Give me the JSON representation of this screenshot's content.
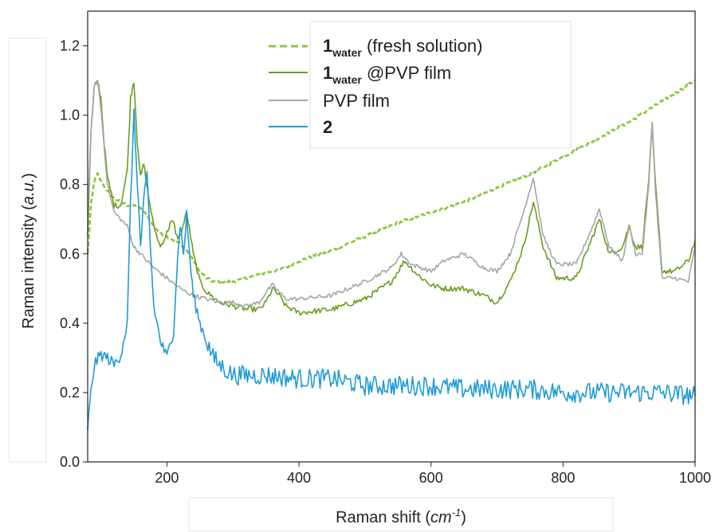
{
  "chart_data": {
    "type": "line",
    "title": "",
    "xlabel": "Raman shift (cm⁻¹)",
    "xlabel_prefix": "Raman shift (",
    "xlabel_unit": "cm",
    "xlabel_exp": "-1",
    "xlabel_suffix": ")",
    "ylabel": "Raman intensity (a.u.)",
    "ylabel_prefix": "Raman intensity (",
    "ylabel_unit": "a.u.",
    "ylabel_suffix": ")",
    "xlim": [
      80,
      1000
    ],
    "ylim": [
      0,
      1.3
    ],
    "xticks": [
      200,
      400,
      600,
      800,
      1000
    ],
    "yticks": [
      0.0,
      0.2,
      0.4,
      0.6,
      0.8,
      1.0,
      1.2
    ],
    "grid": false,
    "legend_position": "top-center",
    "series": [
      {
        "name": "1water (fresh solution)",
        "legend_main": "1",
        "legend_sub": "water",
        "legend_rest": " (fresh solution)",
        "color": "#8cc63f",
        "style": "dashed",
        "x": [
          80,
          85,
          90,
          95,
          100,
          110,
          120,
          130,
          140,
          150,
          160,
          170,
          180,
          190,
          200,
          210,
          220,
          230,
          240,
          250,
          260,
          270,
          280,
          290,
          300,
          320,
          340,
          360,
          380,
          400,
          450,
          500,
          550,
          600,
          650,
          700,
          750,
          800,
          850,
          900,
          950,
          1000
        ],
        "y": [
          0.6,
          0.74,
          0.81,
          0.83,
          0.81,
          0.78,
          0.76,
          0.75,
          0.74,
          0.74,
          0.73,
          0.71,
          0.68,
          0.66,
          0.65,
          0.64,
          0.63,
          0.61,
          0.58,
          0.55,
          0.53,
          0.52,
          0.52,
          0.52,
          0.52,
          0.53,
          0.54,
          0.55,
          0.56,
          0.58,
          0.61,
          0.65,
          0.69,
          0.72,
          0.75,
          0.79,
          0.83,
          0.88,
          0.93,
          0.98,
          1.04,
          1.1
        ]
      },
      {
        "name": "1water @PVP film",
        "legend_main": "1",
        "legend_sub": "water",
        "legend_rest": " @PVP film",
        "color": "#6b9c1f",
        "style": "solid",
        "x": [
          80,
          85,
          90,
          95,
          100,
          105,
          110,
          120,
          130,
          140,
          145,
          150,
          155,
          160,
          165,
          170,
          180,
          190,
          200,
          205,
          210,
          215,
          220,
          230,
          240,
          250,
          260,
          280,
          300,
          320,
          340,
          350,
          360,
          370,
          380,
          400,
          450,
          500,
          540,
          560,
          580,
          600,
          620,
          650,
          680,
          700,
          720,
          740,
          755,
          770,
          790,
          820,
          845,
          855,
          870,
          890,
          900,
          910,
          920,
          930,
          935,
          940,
          950,
          970,
          990,
          1000
        ],
        "y": [
          0.66,
          0.95,
          1.08,
          1.1,
          1.05,
          0.92,
          0.82,
          0.74,
          0.74,
          0.84,
          1.05,
          1.1,
          0.93,
          0.82,
          0.86,
          0.79,
          0.68,
          0.62,
          0.66,
          0.69,
          0.69,
          0.65,
          0.65,
          0.72,
          0.6,
          0.52,
          0.49,
          0.46,
          0.45,
          0.44,
          0.44,
          0.46,
          0.5,
          0.48,
          0.45,
          0.43,
          0.44,
          0.47,
          0.52,
          0.58,
          0.54,
          0.51,
          0.5,
          0.5,
          0.48,
          0.46,
          0.52,
          0.62,
          0.75,
          0.62,
          0.53,
          0.53,
          0.65,
          0.7,
          0.6,
          0.62,
          0.68,
          0.62,
          0.62,
          0.82,
          0.97,
          0.8,
          0.55,
          0.55,
          0.58,
          0.64
        ]
      },
      {
        "name": "PVP film",
        "color": "#a6a6a6",
        "style": "solid",
        "x": [
          80,
          85,
          90,
          95,
          100,
          110,
          120,
          130,
          140,
          145,
          150,
          155,
          160,
          170,
          180,
          200,
          220,
          240,
          260,
          280,
          300,
          320,
          340,
          350,
          360,
          370,
          380,
          400,
          450,
          500,
          540,
          555,
          570,
          600,
          620,
          650,
          680,
          700,
          720,
          740,
          755,
          770,
          790,
          820,
          845,
          855,
          870,
          890,
          900,
          910,
          920,
          930,
          935,
          940,
          950,
          970,
          990,
          1000
        ],
        "y": [
          0.72,
          0.95,
          1.08,
          1.1,
          1.02,
          0.8,
          0.72,
          0.7,
          0.68,
          0.65,
          0.62,
          0.61,
          0.6,
          0.58,
          0.56,
          0.53,
          0.5,
          0.48,
          0.47,
          0.46,
          0.46,
          0.45,
          0.46,
          0.49,
          0.51,
          0.49,
          0.47,
          0.47,
          0.48,
          0.52,
          0.56,
          0.6,
          0.57,
          0.55,
          0.58,
          0.6,
          0.56,
          0.55,
          0.6,
          0.72,
          0.82,
          0.65,
          0.57,
          0.57,
          0.68,
          0.73,
          0.62,
          0.58,
          0.68,
          0.6,
          0.6,
          0.8,
          0.98,
          0.78,
          0.53,
          0.53,
          0.52,
          0.62
        ]
      },
      {
        "name": "2",
        "legend_main": "2",
        "color": "#1f9bd7",
        "style": "solid",
        "x": [
          80,
          85,
          90,
          100,
          110,
          120,
          130,
          140,
          145,
          150,
          155,
          160,
          165,
          170,
          175,
          180,
          190,
          200,
          210,
          215,
          220,
          225,
          230,
          235,
          240,
          250,
          260,
          270,
          280,
          300,
          350,
          400,
          450,
          500,
          550,
          600,
          650,
          700,
          750,
          800,
          850,
          900,
          950,
          1000
        ],
        "y": [
          0.1,
          0.2,
          0.28,
          0.31,
          0.3,
          0.28,
          0.31,
          0.4,
          0.75,
          1.0,
          0.82,
          0.62,
          0.75,
          0.83,
          0.62,
          0.45,
          0.35,
          0.3,
          0.38,
          0.55,
          0.69,
          0.6,
          0.71,
          0.58,
          0.48,
          0.4,
          0.35,
          0.3,
          0.28,
          0.25,
          0.25,
          0.24,
          0.24,
          0.22,
          0.22,
          0.22,
          0.21,
          0.21,
          0.21,
          0.2,
          0.2,
          0.2,
          0.2,
          0.19
        ]
      }
    ]
  }
}
